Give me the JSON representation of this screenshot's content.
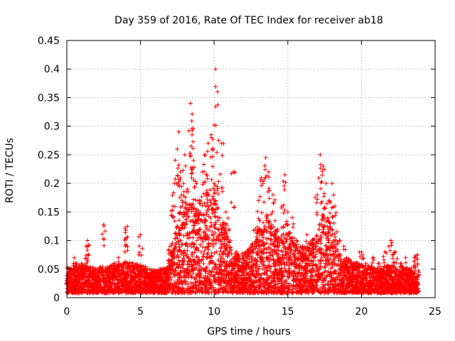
{
  "chart_data": {
    "type": "scatter",
    "title": "Day 359 of 2016, Rate Of TEC Index for receiver ab18",
    "xlabel": "GPS time / hours",
    "ylabel": "ROTI / TECUs",
    "xlim": [
      0,
      25
    ],
    "ylim": [
      0,
      0.45
    ],
    "x_ticks": [
      0,
      5,
      10,
      15,
      20,
      25
    ],
    "x_tick_labels": [
      "0",
      "5",
      "10",
      "15",
      "20",
      "25"
    ],
    "y_ticks": [
      0,
      0.05,
      0.1,
      0.15,
      0.2,
      0.25,
      0.3,
      0.35,
      0.4,
      0.45
    ],
    "y_tick_labels": [
      "0",
      "0.05",
      "0.1",
      "0.15",
      "0.2",
      "0.25",
      "0.3",
      "0.35",
      "0.4",
      "0.45"
    ],
    "grid": true,
    "marker": "+",
    "color": "#ff0000",
    "series": [
      {
        "name": "ROTI",
        "points": [
          [
            0.1,
            0.03
          ],
          [
            0.3,
            0.05
          ],
          [
            0.5,
            0.07
          ],
          [
            0.7,
            0.04
          ],
          [
            1.0,
            0.06
          ],
          [
            1.3,
            0.09
          ],
          [
            1.4,
            0.1
          ],
          [
            1.6,
            0.05
          ],
          [
            2.0,
            0.04
          ],
          [
            2.5,
            0.128
          ],
          [
            2.8,
            0.05
          ],
          [
            3.2,
            0.06
          ],
          [
            3.5,
            0.07
          ],
          [
            4.0,
            0.118
          ],
          [
            4.1,
            0.125
          ],
          [
            4.5,
            0.06
          ],
          [
            5.0,
            0.11
          ],
          [
            5.3,
            0.05
          ],
          [
            5.8,
            0.04
          ],
          [
            6.3,
            0.04
          ],
          [
            6.8,
            0.05
          ],
          [
            7.0,
            0.09
          ],
          [
            7.2,
            0.16
          ],
          [
            7.3,
            0.2
          ],
          [
            7.5,
            0.26
          ],
          [
            7.6,
            0.29
          ],
          [
            7.7,
            0.22
          ],
          [
            7.8,
            0.18
          ],
          [
            8.0,
            0.25
          ],
          [
            8.2,
            0.19
          ],
          [
            8.4,
            0.34
          ],
          [
            8.5,
            0.296
          ],
          [
            8.5,
            0.285
          ],
          [
            8.6,
            0.24
          ],
          [
            8.8,
            0.2
          ],
          [
            9.0,
            0.17
          ],
          [
            9.2,
            0.22
          ],
          [
            9.4,
            0.25
          ],
          [
            9.6,
            0.27
          ],
          [
            9.8,
            0.285
          ],
          [
            9.9,
            0.26
          ],
          [
            10.0,
            0.2
          ],
          [
            10.1,
            0.4
          ],
          [
            10.3,
            0.275
          ],
          [
            10.5,
            0.27
          ],
          [
            10.8,
            0.15
          ],
          [
            11.0,
            0.12
          ],
          [
            11.3,
            0.22
          ],
          [
            11.5,
            0.08
          ],
          [
            12.0,
            0.07
          ],
          [
            12.5,
            0.09
          ],
          [
            12.8,
            0.12
          ],
          [
            13.0,
            0.17
          ],
          [
            13.2,
            0.21
          ],
          [
            13.5,
            0.245
          ],
          [
            13.7,
            0.22
          ],
          [
            14.0,
            0.18
          ],
          [
            14.3,
            0.12
          ],
          [
            14.6,
            0.16
          ],
          [
            14.8,
            0.215
          ],
          [
            15.0,
            0.15
          ],
          [
            15.3,
            0.14
          ],
          [
            15.6,
            0.1
          ],
          [
            16.0,
            0.09
          ],
          [
            16.3,
            0.11
          ],
          [
            16.7,
            0.1
          ],
          [
            17.0,
            0.18
          ],
          [
            17.2,
            0.25
          ],
          [
            17.4,
            0.23
          ],
          [
            17.6,
            0.2
          ],
          [
            17.8,
            0.17
          ],
          [
            18.0,
            0.2
          ],
          [
            18.2,
            0.16
          ],
          [
            18.5,
            0.1
          ],
          [
            18.8,
            0.09
          ],
          [
            19.0,
            0.07
          ],
          [
            19.5,
            0.06
          ],
          [
            20.0,
            0.08
          ],
          [
            20.3,
            0.06
          ],
          [
            20.8,
            0.07
          ],
          [
            21.2,
            0.06
          ],
          [
            21.6,
            0.08
          ],
          [
            22.0,
            0.1
          ],
          [
            22.3,
            0.08
          ],
          [
            22.7,
            0.06
          ],
          [
            23.0,
            0.07
          ],
          [
            23.3,
            0.05
          ],
          [
            23.6,
            0.07
          ],
          [
            23.8,
            0.075
          ]
        ],
        "envelope": [
          [
            0,
            0.045
          ],
          [
            1,
            0.05
          ],
          [
            2,
            0.045
          ],
          [
            3,
            0.05
          ],
          [
            4,
            0.055
          ],
          [
            5,
            0.05
          ],
          [
            6,
            0.04
          ],
          [
            6.8,
            0.045
          ],
          [
            7.5,
            0.13
          ],
          [
            8,
            0.15
          ],
          [
            8.5,
            0.16
          ],
          [
            9,
            0.15
          ],
          [
            9.5,
            0.18
          ],
          [
            10,
            0.17
          ],
          [
            10.5,
            0.14
          ],
          [
            11,
            0.09
          ],
          [
            11.5,
            0.07
          ],
          [
            12,
            0.07
          ],
          [
            12.5,
            0.08
          ],
          [
            13,
            0.11
          ],
          [
            13.5,
            0.14
          ],
          [
            14,
            0.12
          ],
          [
            14.5,
            0.1
          ],
          [
            15,
            0.11
          ],
          [
            15.5,
            0.09
          ],
          [
            16,
            0.08
          ],
          [
            16.5,
            0.09
          ],
          [
            17,
            0.11
          ],
          [
            17.5,
            0.15
          ],
          [
            18,
            0.12
          ],
          [
            18.5,
            0.07
          ],
          [
            19,
            0.06
          ],
          [
            20,
            0.05
          ],
          [
            21,
            0.045
          ],
          [
            22,
            0.05
          ],
          [
            23,
            0.045
          ],
          [
            23.8,
            0.04
          ]
        ]
      }
    ]
  }
}
